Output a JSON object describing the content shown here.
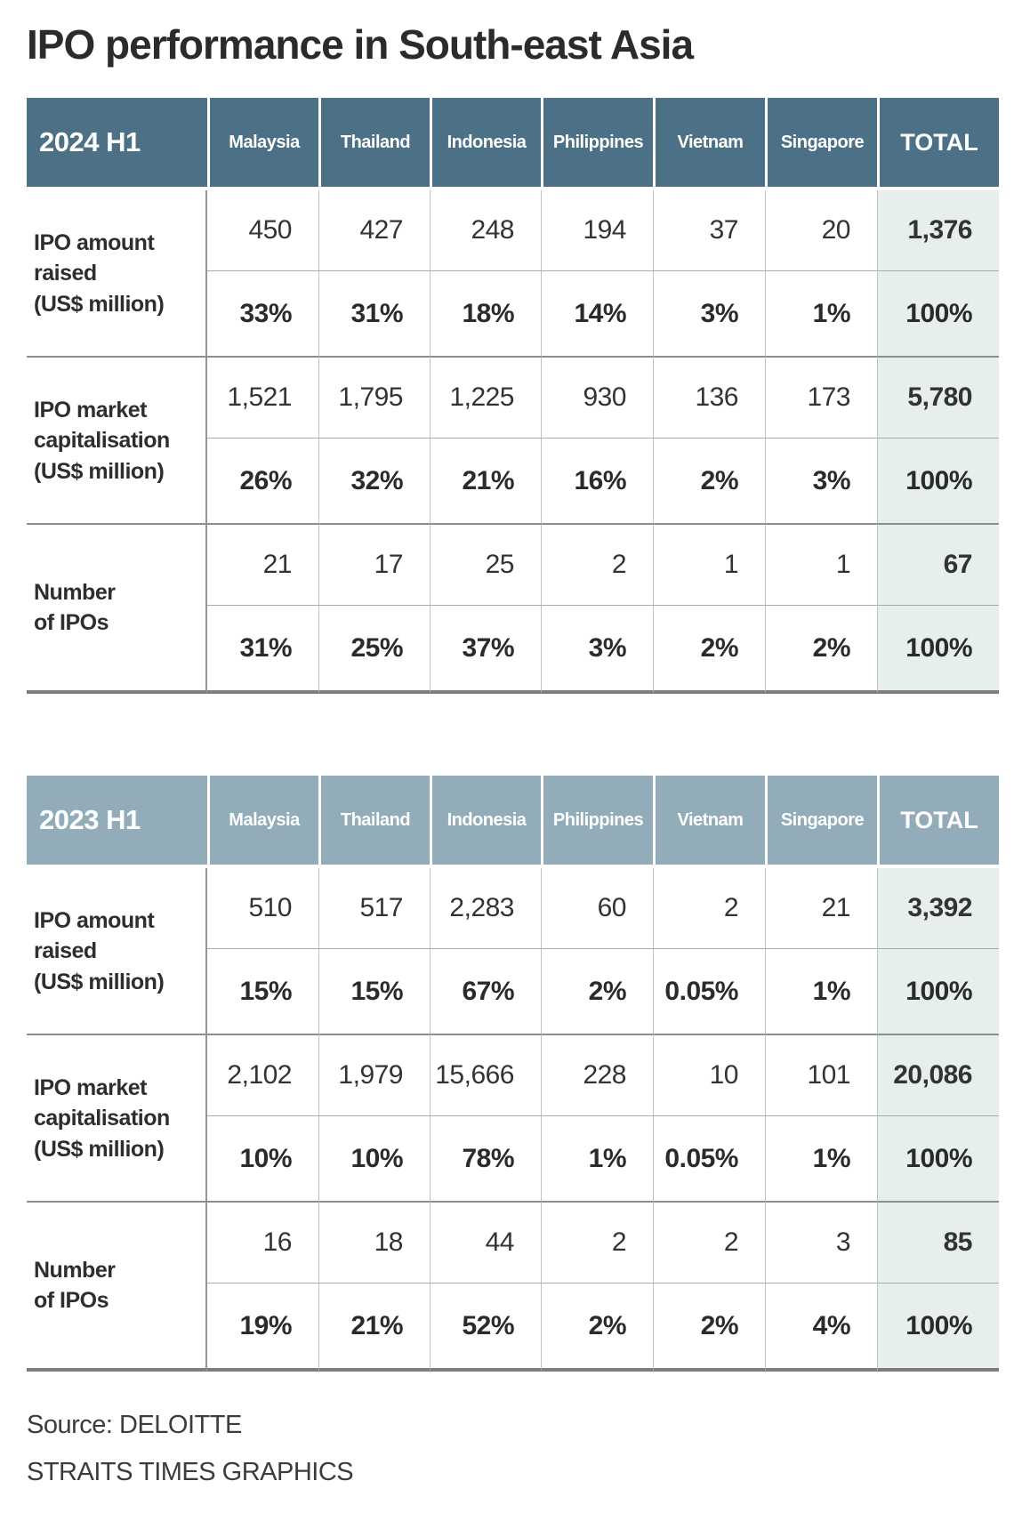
{
  "title": "IPO performance in South-east Asia",
  "source_line": "Source: DELOITTE",
  "credit_line": "STRAITS TIMES GRAPHICS",
  "columns": [
    "Malaysia",
    "Thailand",
    "Indonesia",
    "Philippines",
    "Vietnam",
    "Singapore"
  ],
  "total_label": "TOTAL",
  "tables": [
    {
      "period": "2024 H1",
      "rows": [
        {
          "label_lines": [
            "IPO amount",
            "raised",
            "(US$ million)"
          ],
          "values": [
            "450",
            "427",
            "248",
            "194",
            "37",
            "20"
          ],
          "total": "1,376",
          "pcts": [
            "33%",
            "31%",
            "18%",
            "14%",
            "3%",
            "1%"
          ],
          "total_pct": "100%"
        },
        {
          "label_lines": [
            "IPO market",
            "capitalisation",
            "(US$ million)"
          ],
          "values": [
            "1,521",
            "1,795",
            "1,225",
            "930",
            "136",
            "173"
          ],
          "total": "5,780",
          "pcts": [
            "26%",
            "32%",
            "21%",
            "16%",
            "2%",
            "3%"
          ],
          "total_pct": "100%"
        },
        {
          "label_lines": [
            "Number",
            "of IPOs"
          ],
          "values": [
            "21",
            "17",
            "25",
            "2",
            "1",
            "1"
          ],
          "total": "67",
          "pcts": [
            "31%",
            "25%",
            "37%",
            "3%",
            "2%",
            "2%"
          ],
          "total_pct": "100%"
        }
      ]
    },
    {
      "period": "2023 H1",
      "rows": [
        {
          "label_lines": [
            "IPO amount",
            "raised",
            "(US$ million)"
          ],
          "values": [
            "510",
            "517",
            "2,283",
            "60",
            "2",
            "21"
          ],
          "total": "3,392",
          "pcts": [
            "15%",
            "15%",
            "67%",
            "2%",
            "0.05%",
            "1%"
          ],
          "total_pct": "100%"
        },
        {
          "label_lines": [
            "IPO market",
            "capitalisation",
            "(US$ million)"
          ],
          "values": [
            "2,102",
            "1,979",
            "15,666",
            "228",
            "10",
            "101"
          ],
          "total": "20,086",
          "pcts": [
            "10%",
            "10%",
            "78%",
            "1%",
            "0.05%",
            "1%"
          ],
          "total_pct": "100%"
        },
        {
          "label_lines": [
            "Number",
            "of IPOs"
          ],
          "values": [
            "16",
            "18",
            "44",
            "2",
            "2",
            "3"
          ],
          "total": "85",
          "pcts": [
            "19%",
            "21%",
            "52%",
            "2%",
            "2%",
            "4%"
          ],
          "total_pct": "100%"
        }
      ]
    }
  ],
  "colors": {
    "header_2024_bg": "#4c7086",
    "header_2023_bg": "#92acba",
    "header_text": "#ffffff",
    "total_column_bg": "#e6efee",
    "body_text": "#2e2e2e",
    "grid_line": "#c2c2c2",
    "group_divider": "#8e8e8e",
    "table_bottom_border": "#7d7d7d"
  },
  "chart_data": [
    {
      "type": "table",
      "title": "2024 H1",
      "columns": [
        "Malaysia",
        "Thailand",
        "Indonesia",
        "Philippines",
        "Vietnam",
        "Singapore",
        "TOTAL"
      ],
      "rows": [
        {
          "metric": "IPO amount raised (US$ million)",
          "values": [
            450,
            427,
            248,
            194,
            37,
            20
          ],
          "total": 1376,
          "shares": [
            "33%",
            "31%",
            "18%",
            "14%",
            "3%",
            "1%"
          ],
          "total_share": "100%"
        },
        {
          "metric": "IPO market capitalisation (US$ million)",
          "values": [
            1521,
            1795,
            1225,
            930,
            136,
            173
          ],
          "total": 5780,
          "shares": [
            "26%",
            "32%",
            "21%",
            "16%",
            "2%",
            "3%"
          ],
          "total_share": "100%"
        },
        {
          "metric": "Number of IPOs",
          "values": [
            21,
            17,
            25,
            2,
            1,
            1
          ],
          "total": 67,
          "shares": [
            "31%",
            "25%",
            "37%",
            "3%",
            "2%",
            "2%"
          ],
          "total_share": "100%"
        }
      ]
    },
    {
      "type": "table",
      "title": "2023 H1",
      "columns": [
        "Malaysia",
        "Thailand",
        "Indonesia",
        "Philippines",
        "Vietnam",
        "Singapore",
        "TOTAL"
      ],
      "rows": [
        {
          "metric": "IPO amount raised (US$ million)",
          "values": [
            510,
            517,
            2283,
            60,
            2,
            21
          ],
          "total": 3392,
          "shares": [
            "15%",
            "15%",
            "67%",
            "2%",
            "0.05%",
            "1%"
          ],
          "total_share": "100%"
        },
        {
          "metric": "IPO market capitalisation (US$ million)",
          "values": [
            2102,
            1979,
            15666,
            228,
            10,
            101
          ],
          "total": 20086,
          "shares": [
            "10%",
            "10%",
            "78%",
            "1%",
            "0.05%",
            "1%"
          ],
          "total_share": "100%"
        },
        {
          "metric": "Number of IPOs",
          "values": [
            16,
            18,
            44,
            2,
            2,
            3
          ],
          "total": 85,
          "shares": [
            "19%",
            "21%",
            "52%",
            "2%",
            "2%",
            "4%"
          ],
          "total_share": "100%"
        }
      ]
    }
  ]
}
